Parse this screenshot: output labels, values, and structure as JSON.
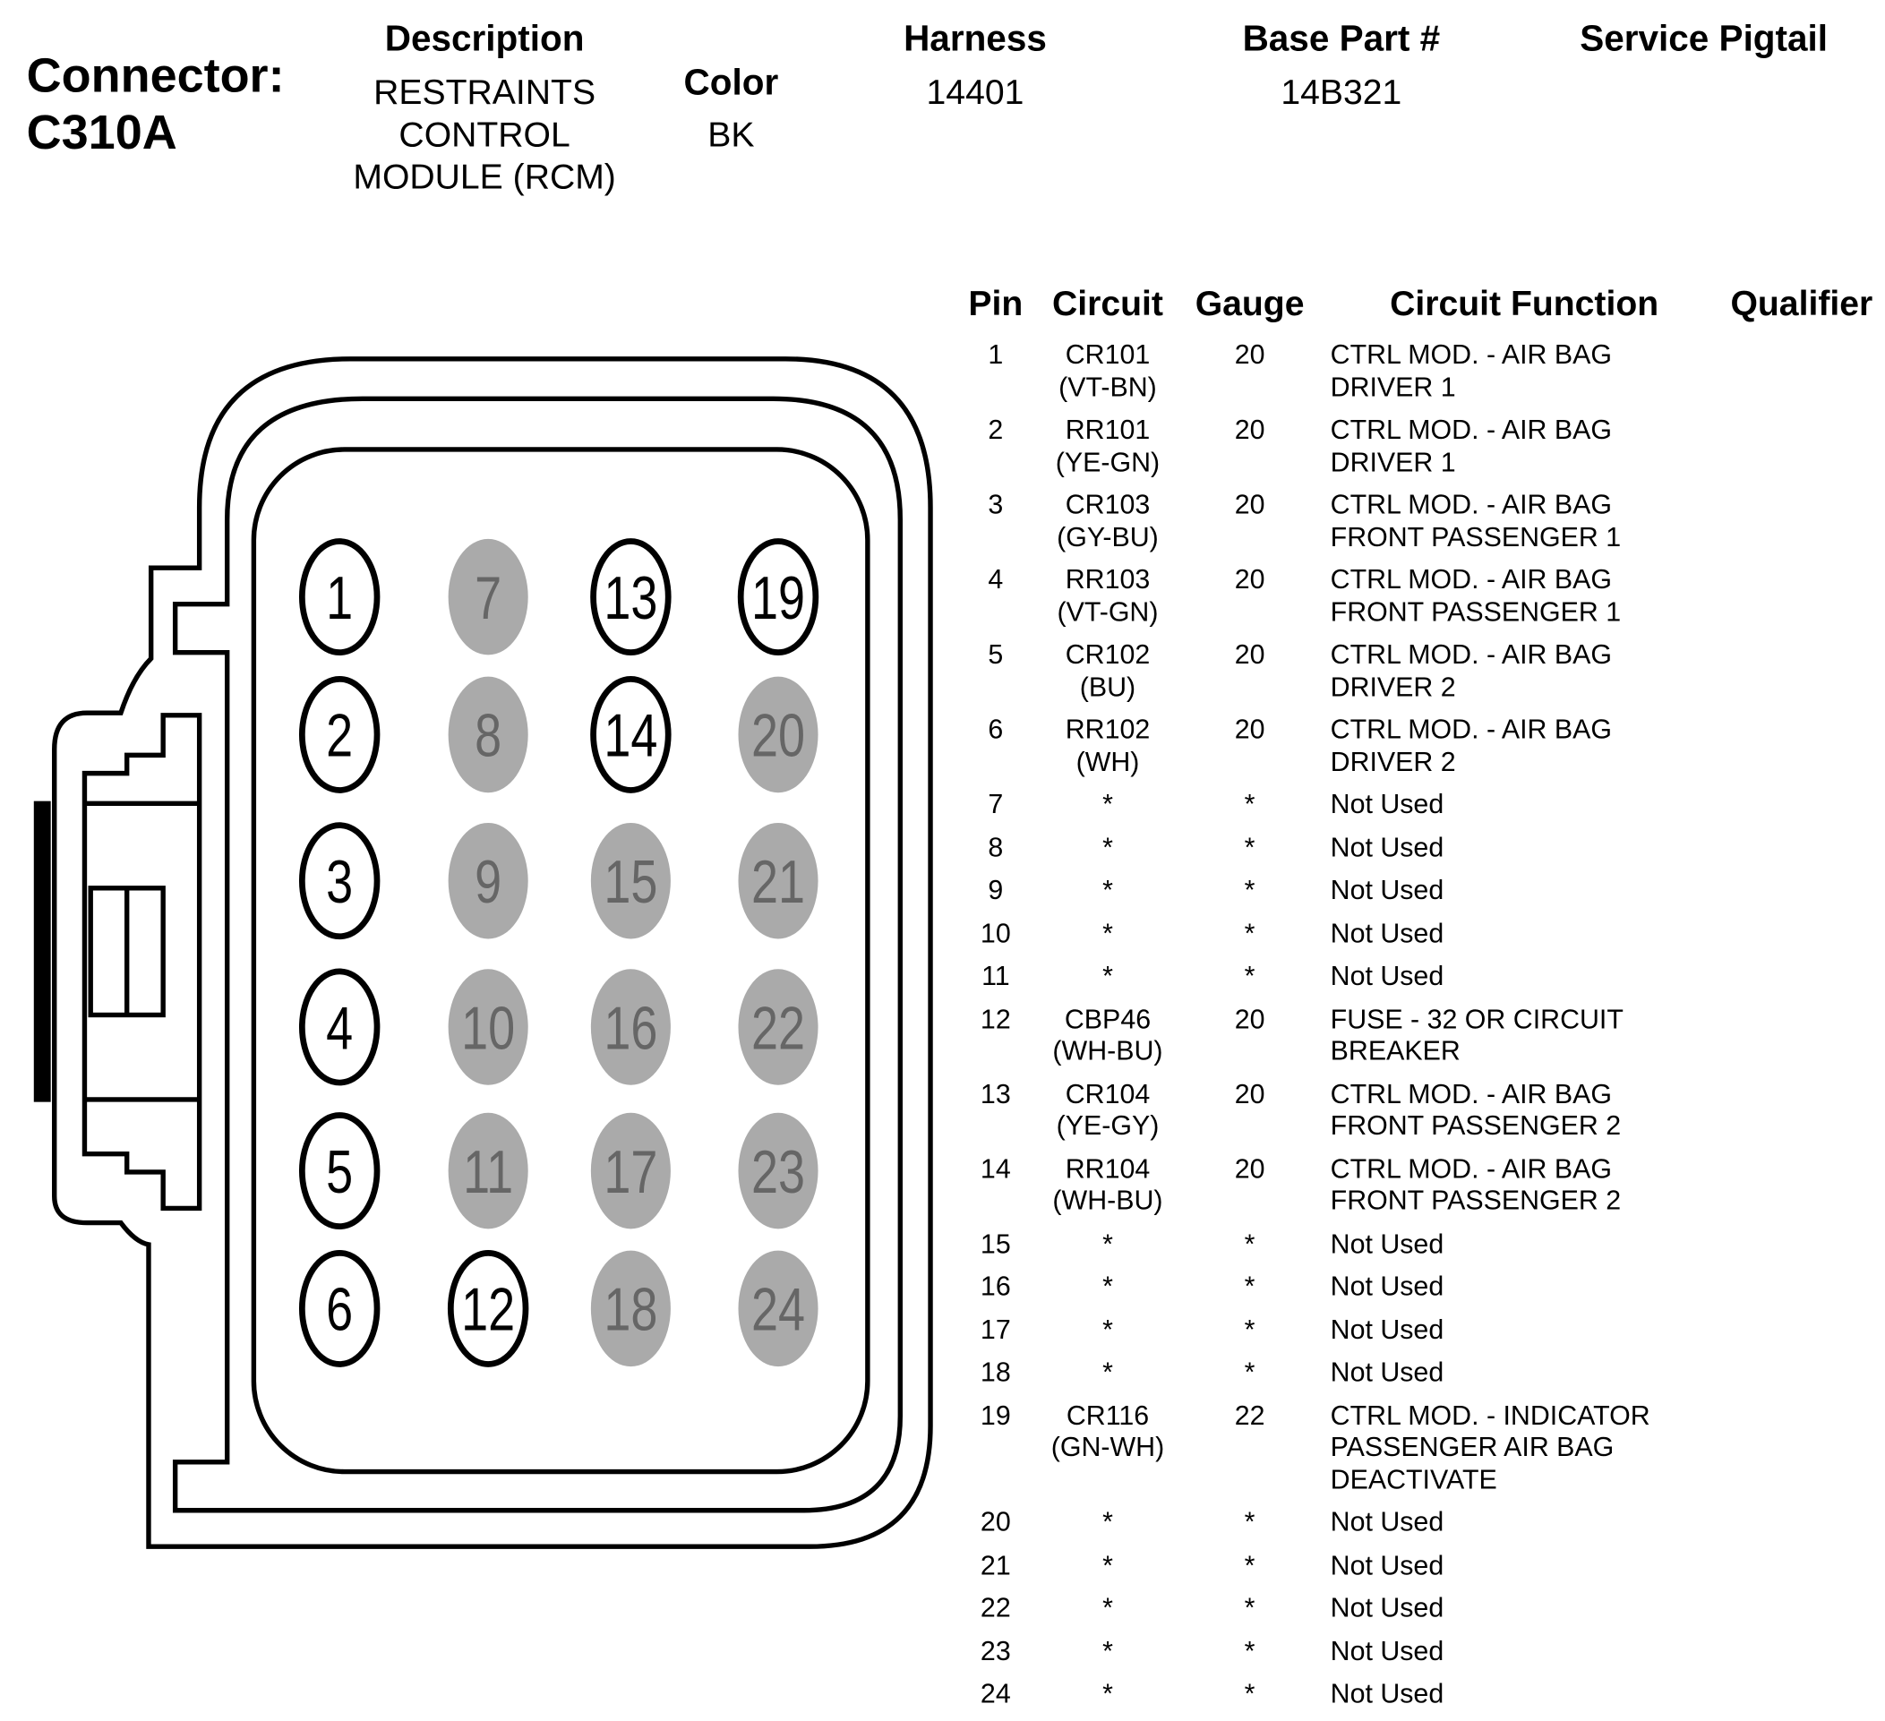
{
  "connector": {
    "label": "Connector:",
    "id": "C310A"
  },
  "header": {
    "description": {
      "label": "Description",
      "value": "RESTRAINTS\nCONTROL\nMODULE (RCM)"
    },
    "color": {
      "label": "Color",
      "value": "BK"
    },
    "harness": {
      "label": "Harness",
      "value": "14401"
    },
    "base_part": {
      "label": "Base Part #",
      "value": "14B321"
    },
    "service_pigtail": {
      "label": "Service Pigtail",
      "value": ""
    }
  },
  "table": {
    "columns": [
      "Pin",
      "Circuit",
      "Gauge",
      "Circuit Function",
      "Qualifier"
    ],
    "rows": [
      {
        "pin": "1",
        "circuit": "CR101\n(VT-BN)",
        "gauge": "20",
        "function": "CTRL MOD. - AIR BAG\nDRIVER 1",
        "qualifier": ""
      },
      {
        "pin": "2",
        "circuit": "RR101\n(YE-GN)",
        "gauge": "20",
        "function": "CTRL MOD. - AIR BAG\nDRIVER 1",
        "qualifier": ""
      },
      {
        "pin": "3",
        "circuit": "CR103\n(GY-BU)",
        "gauge": "20",
        "function": "CTRL MOD. - AIR BAG\nFRONT PASSENGER 1",
        "qualifier": ""
      },
      {
        "pin": "4",
        "circuit": "RR103\n(VT-GN)",
        "gauge": "20",
        "function": "CTRL MOD. - AIR BAG\nFRONT PASSENGER 1",
        "qualifier": ""
      },
      {
        "pin": "5",
        "circuit": "CR102\n(BU)",
        "gauge": "20",
        "function": "CTRL MOD. - AIR BAG\nDRIVER 2",
        "qualifier": ""
      },
      {
        "pin": "6",
        "circuit": "RR102\n(WH)",
        "gauge": "20",
        "function": "CTRL MOD. - AIR BAG\nDRIVER 2",
        "qualifier": ""
      },
      {
        "pin": "7",
        "circuit": "*",
        "gauge": "*",
        "function": "Not Used",
        "qualifier": ""
      },
      {
        "pin": "8",
        "circuit": "*",
        "gauge": "*",
        "function": "Not Used",
        "qualifier": ""
      },
      {
        "pin": "9",
        "circuit": "*",
        "gauge": "*",
        "function": "Not Used",
        "qualifier": ""
      },
      {
        "pin": "10",
        "circuit": "*",
        "gauge": "*",
        "function": "Not Used",
        "qualifier": ""
      },
      {
        "pin": "11",
        "circuit": "*",
        "gauge": "*",
        "function": "Not Used",
        "qualifier": ""
      },
      {
        "pin": "12",
        "circuit": "CBP46\n(WH-BU)",
        "gauge": "20",
        "function": "FUSE - 32 OR CIRCUIT\nBREAKER",
        "qualifier": ""
      },
      {
        "pin": "13",
        "circuit": "CR104\n(YE-GY)",
        "gauge": "20",
        "function": "CTRL MOD. - AIR BAG\nFRONT PASSENGER 2",
        "qualifier": ""
      },
      {
        "pin": "14",
        "circuit": "RR104\n(WH-BU)",
        "gauge": "20",
        "function": "CTRL MOD. - AIR BAG\nFRONT PASSENGER 2",
        "qualifier": ""
      },
      {
        "pin": "15",
        "circuit": "*",
        "gauge": "*",
        "function": "Not Used",
        "qualifier": ""
      },
      {
        "pin": "16",
        "circuit": "*",
        "gauge": "*",
        "function": "Not Used",
        "qualifier": ""
      },
      {
        "pin": "17",
        "circuit": "*",
        "gauge": "*",
        "function": "Not Used",
        "qualifier": ""
      },
      {
        "pin": "18",
        "circuit": "*",
        "gauge": "*",
        "function": "Not Used",
        "qualifier": ""
      },
      {
        "pin": "19",
        "circuit": "CR116\n(GN-WH)",
        "gauge": "22",
        "function": "CTRL MOD. - INDICATOR\nPASSENGER AIR BAG\nDEACTIVATE",
        "qualifier": ""
      },
      {
        "pin": "20",
        "circuit": "*",
        "gauge": "*",
        "function": "Not Used",
        "qualifier": ""
      },
      {
        "pin": "21",
        "circuit": "*",
        "gauge": "*",
        "function": "Not Used",
        "qualifier": ""
      },
      {
        "pin": "22",
        "circuit": "*",
        "gauge": "*",
        "function": "Not Used",
        "qualifier": ""
      },
      {
        "pin": "23",
        "circuit": "*",
        "gauge": "*",
        "function": "Not Used",
        "qualifier": ""
      },
      {
        "pin": "24",
        "circuit": "*",
        "gauge": "*",
        "function": "Not Used",
        "qualifier": ""
      }
    ]
  },
  "diagram": {
    "used_pins": [
      "1",
      "2",
      "3",
      "4",
      "5",
      "6",
      "12",
      "13",
      "14",
      "19"
    ],
    "colors": {
      "used_fill": "#ffffff",
      "unused_fill": "#aaaaaa",
      "unused_text": "#666666",
      "outline": "#000000"
    }
  }
}
